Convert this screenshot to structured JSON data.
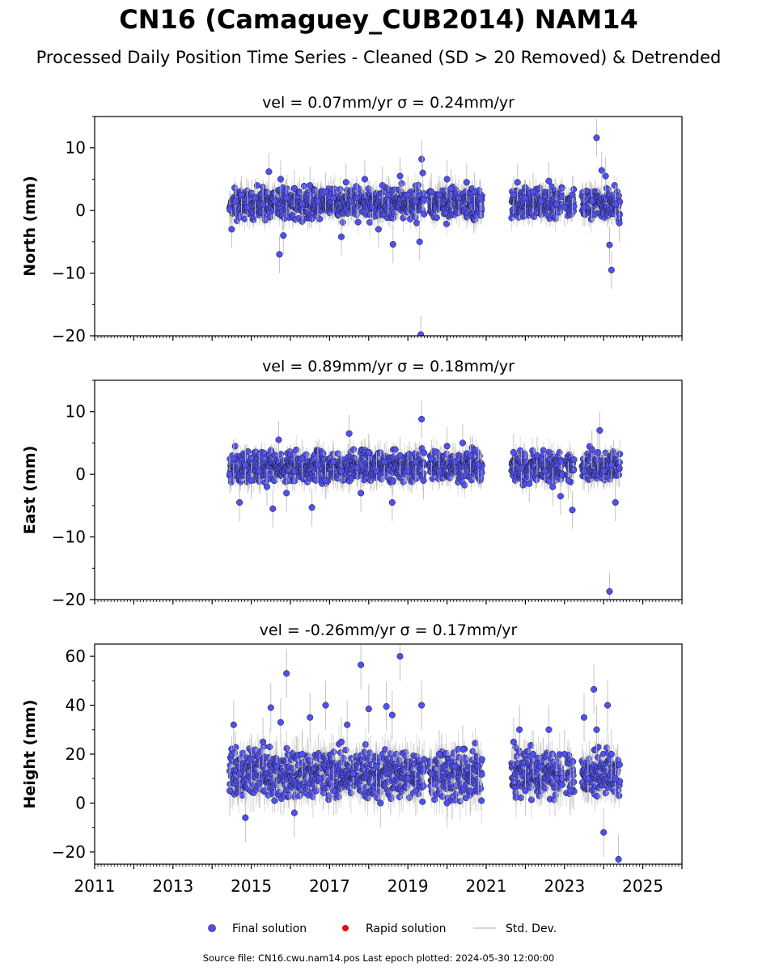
{
  "header": {
    "title": "CN16 (Camaguey_CUB2014) NAM14",
    "subtitle": "Processed Daily Position Time Series - Cleaned (SD > 20 Removed) & Detrended"
  },
  "legend": {
    "placement": "bottom-center",
    "items": [
      {
        "label": "Final solution",
        "color": "#5050f0",
        "marker": "circle"
      },
      {
        "label": "Rapid solution",
        "color": "#e01010",
        "marker": "circle"
      },
      {
        "label": "Std. Dev.",
        "color": "#cccccc",
        "marker": "line"
      }
    ]
  },
  "footer": {
    "source": "Source file: CN16.cwu.nam14.pos  Last epoch plotted: 2024-05-30 12:00:00"
  },
  "chart_data": [
    {
      "type": "scatter",
      "title": "vel = 0.07mm/yr   σ = 0.24mm/yr",
      "ylabel": "North (mm)",
      "xlim": [
        2011,
        2026
      ],
      "ylim": [
        -20,
        15
      ],
      "yticks": [
        -20,
        -10,
        0,
        10
      ],
      "xticks": [
        2011,
        2013,
        2015,
        2017,
        2019,
        2021,
        2023,
        2025
      ],
      "grid": false,
      "series": [
        {
          "name": "Final solution",
          "x": [
            2014.45,
            2014.5,
            2014.6,
            2014.75,
            2014.9,
            2015.1,
            2015.3,
            2015.45,
            2015.6,
            2015.72,
            2015.75,
            2015.82,
            2015.9,
            2016.1,
            2016.3,
            2016.5,
            2016.7,
            2016.9,
            2017.1,
            2017.3,
            2017.42,
            2017.55,
            2017.7,
            2017.9,
            2018.1,
            2018.25,
            2018.35,
            2018.5,
            2018.62,
            2018.8,
            2019.0,
            2019.2,
            2019.3,
            2019.33,
            2019.35,
            2019.38,
            2019.6,
            2019.8,
            2020.0,
            2020.1,
            2020.3,
            2020.5,
            2020.7,
            2020.85,
            2021.7,
            2021.8,
            2022.0,
            2022.2,
            2022.4,
            2022.6,
            2022.8,
            2023.0,
            2023.2,
            2023.5,
            2023.7,
            2023.82,
            2023.95,
            2024.05,
            2024.15,
            2024.2,
            2024.3,
            2024.4
          ],
          "y": [
            0.2,
            -3.0,
            1.5,
            2.5,
            0.5,
            2.0,
            1.0,
            6.2,
            1.5,
            -7.0,
            5.0,
            -4.0,
            2.0,
            3.5,
            1.0,
            4.0,
            1.5,
            3.0,
            2.0,
            -4.2,
            4.5,
            1.5,
            2.0,
            5.0,
            0.5,
            -3.0,
            4.0,
            2.5,
            -5.4,
            5.5,
            2.5,
            1.5,
            -5.0,
            -19.8,
            8.2,
            6.0,
            3.0,
            2.5,
            5.0,
            3.5,
            2.0,
            4.5,
            3.0,
            2.0,
            2.5,
            4.5,
            2.0,
            3.0,
            1.5,
            4.7,
            1.0,
            0.5,
            2.5,
            0.5,
            1.5,
            11.6,
            6.4,
            5.5,
            -5.5,
            -9.5,
            1.0,
            -2.0
          ]
        }
      ]
    },
    {
      "type": "scatter",
      "title": "vel = 0.89mm/yr   σ = 0.18mm/yr",
      "ylabel": "East (mm)",
      "xlim": [
        2011,
        2026
      ],
      "ylim": [
        -20,
        15
      ],
      "yticks": [
        -20,
        -10,
        0,
        10
      ],
      "xticks": [
        2011,
        2013,
        2015,
        2017,
        2019,
        2021,
        2023,
        2025
      ],
      "grid": false,
      "series": [
        {
          "name": "Final solution",
          "x": [
            2014.45,
            2014.55,
            2014.7,
            2014.85,
            2015.0,
            2015.2,
            2015.4,
            2015.55,
            2015.7,
            2015.9,
            2016.1,
            2016.3,
            2016.55,
            2016.7,
            2016.9,
            2017.1,
            2017.3,
            2017.5,
            2017.7,
            2017.8,
            2018.0,
            2018.2,
            2018.4,
            2018.6,
            2018.8,
            2019.0,
            2019.2,
            2019.35,
            2019.4,
            2019.6,
            2019.8,
            2020.0,
            2020.2,
            2020.4,
            2020.6,
            2020.8,
            2021.7,
            2021.9,
            2022.1,
            2022.3,
            2022.5,
            2022.7,
            2022.9,
            2023.1,
            2023.2,
            2023.5,
            2023.7,
            2023.85,
            2023.9,
            2024.0,
            2024.15,
            2024.2,
            2024.3,
            2024.4
          ],
          "y": [
            0.0,
            2.5,
            -4.5,
            1.5,
            -1.0,
            0.5,
            -2.0,
            -5.5,
            5.5,
            -3.0,
            0.5,
            2.5,
            -5.3,
            1.5,
            -1.0,
            2.0,
            0.5,
            6.5,
            1.0,
            -3.0,
            3.5,
            0.5,
            2.0,
            -4.5,
            3.0,
            0.5,
            2.0,
            8.8,
            -1.0,
            2.5,
            0.5,
            4.5,
            2.0,
            5.0,
            3.0,
            1.5,
            3.5,
            1.0,
            -1.5,
            3.0,
            0.5,
            -2.0,
            -3.5,
            -1.0,
            -5.7,
            0.5,
            4.0,
            3.5,
            7.0,
            0.5,
            -18.7,
            1.5,
            -4.5,
            1.0
          ]
        }
      ]
    },
    {
      "type": "scatter",
      "title": "vel = -0.26mm/yr   σ = 0.17mm/yr",
      "ylabel": "Height (mm)",
      "xlim": [
        2011,
        2026
      ],
      "ylim": [
        -25,
        65
      ],
      "yticks": [
        -20,
        0,
        20,
        40,
        60
      ],
      "xticks": [
        2011,
        2013,
        2015,
        2017,
        2019,
        2021,
        2023,
        2025
      ],
      "xticklabels": [
        "2011",
        "2013",
        "2015",
        "2017",
        "2019",
        "2021",
        "2023",
        "2025"
      ],
      "grid": false,
      "series": [
        {
          "name": "Final solution",
          "x": [
            2014.45,
            2014.55,
            2014.7,
            2014.85,
            2015.0,
            2015.2,
            2015.3,
            2015.5,
            2015.65,
            2015.75,
            2015.9,
            2016.1,
            2016.3,
            2016.5,
            2016.75,
            2016.9,
            2017.1,
            2017.3,
            2017.45,
            2017.6,
            2017.8,
            2018.0,
            2018.2,
            2018.3,
            2018.45,
            2018.6,
            2018.8,
            2019.0,
            2019.2,
            2019.35,
            2019.6,
            2019.8,
            2020.0,
            2020.2,
            2020.4,
            2020.6,
            2020.8,
            2021.7,
            2021.85,
            2022.0,
            2022.2,
            2022.4,
            2022.6,
            2022.8,
            2023.0,
            2023.15,
            2023.5,
            2023.6,
            2023.75,
            2023.82,
            2024.0,
            2024.1,
            2024.2,
            2024.3,
            2024.38
          ],
          "y": [
            5,
            32,
            12,
            -6,
            18,
            8,
            25,
            39,
            15,
            33,
            53,
            -4,
            20,
            35,
            10,
            40,
            5,
            25,
            32,
            12,
            56.5,
            38.5,
            15,
            0,
            39.5,
            36,
            60,
            10,
            5,
            40,
            12,
            20,
            0,
            15,
            22,
            5,
            15,
            25,
            30,
            5,
            20,
            15,
            30,
            10,
            20,
            5,
            35,
            10,
            46.5,
            30,
            -12,
            40,
            20,
            10,
            -23
          ]
        }
      ]
    }
  ]
}
